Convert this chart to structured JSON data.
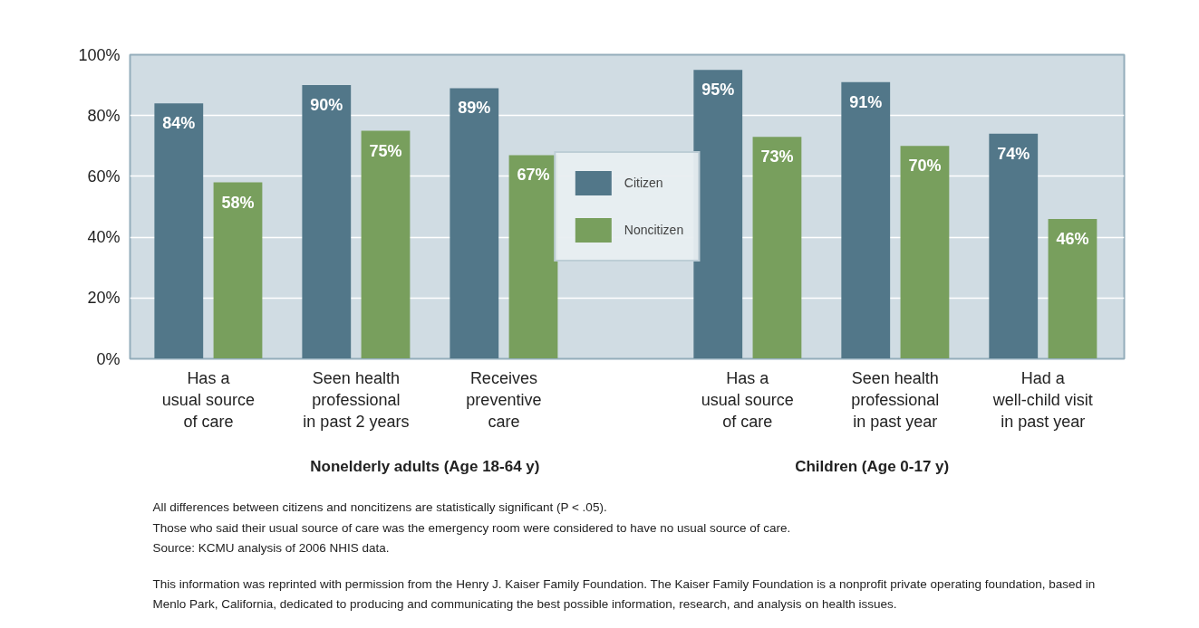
{
  "chart_data": {
    "type": "bar",
    "categories": [
      "Has a\nusual source\nof care",
      "Seen health\nprofessional\nin past 2 years",
      "Receives\npreventive\ncare",
      "Has a\nusual source\nof care",
      "Seen health\nprofessional\nin past year",
      "Had a\nwell-child visit\nin past year"
    ],
    "series": [
      {
        "name": "Citizen",
        "color": "#527789",
        "values": [
          84,
          90,
          89,
          95,
          91,
          74
        ]
      },
      {
        "name": "Noncitizen",
        "color": "#789f5d",
        "values": [
          58,
          75,
          67,
          73,
          70,
          46
        ]
      }
    ],
    "ylim": [
      0,
      100
    ],
    "yticks": [
      {
        "value": 0,
        "label": "0%"
      },
      {
        "value": 20,
        "label": "20%"
      },
      {
        "value": 40,
        "label": "40%"
      },
      {
        "value": 60,
        "label": "60%"
      },
      {
        "value": 80,
        "label": "80%"
      },
      {
        "value": 100,
        "label": "100%"
      }
    ],
    "value_labels": [
      [
        "84%",
        "90%",
        "89%",
        "95%",
        "91%",
        "74%"
      ],
      [
        "58%",
        "75%",
        "67%",
        "73%",
        "70%",
        "46%"
      ]
    ],
    "grid": "y",
    "legend": "center",
    "annotations": [
      "Nonelderly adults (Age 18-64 y)",
      "Children (Age 0-17 y)",
      "All differences between citizens and noncitizens are statistically significant (P < .05).",
      "Those who said their usual source of care was the emergency room were considered to have no usual source of care.",
      "Source: KCMU analysis of 2006 NHIS data.",
      "This information was reprinted with permission from the Henry J. Kaiser Family Foundation. The Kaiser Family Foundation is a nonprofit private operating foundation, based in",
      "Menlo Park, California, dedicated to producing and communicating the best possible information, research, and analysis on health issues."
    ]
  }
}
